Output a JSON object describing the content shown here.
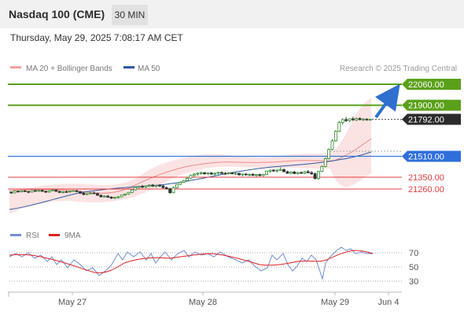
{
  "header": {
    "title": "Nasdaq 100 (CME)",
    "timeframe": "30 MIN",
    "datetime": "Thursday, May 29, 2025 7:08:17 AM CET"
  },
  "chart_data": {
    "type": "candlestick",
    "legend": [
      {
        "name": "MA 20 + Bollinger Bands",
        "color": "#f08a8a"
      },
      {
        "name": "MA 50",
        "color": "#2e5aa0"
      }
    ],
    "credit": "Research © 2025 Trading Central",
    "x_ticks": [
      "May 27",
      "May 28",
      "May 29",
      "Jun 4"
    ],
    "ylim": [
      21160,
      22080
    ],
    "current_price": "21792.00",
    "levels": [
      {
        "label": "22060.00",
        "value": 22060,
        "kind": "resistance",
        "color": "#5aa01a"
      },
      {
        "label": "21900.00",
        "value": 21900,
        "kind": "resistance",
        "color": "#5aa01a"
      },
      {
        "label": "21510.00",
        "value": 21510,
        "kind": "pivot",
        "color": "#2f6fdb"
      },
      {
        "label": "21350.00",
        "value": 21350,
        "kind": "support",
        "color": "#e04040"
      },
      {
        "label": "21260.00",
        "value": 21260,
        "kind": "support",
        "color": "#e04040"
      }
    ],
    "candles": [
      [
        21237,
        21240,
        21222,
        21230
      ],
      [
        21230,
        21248,
        21226,
        21244
      ],
      [
        21244,
        21247,
        21232,
        21238
      ],
      [
        21238,
        21250,
        21234,
        21246
      ],
      [
        21246,
        21252,
        21238,
        21241
      ],
      [
        21241,
        21246,
        21228,
        21236
      ],
      [
        21236,
        21250,
        21233,
        21248
      ],
      [
        21248,
        21256,
        21240,
        21244
      ],
      [
        21244,
        21254,
        21236,
        21250
      ],
      [
        21250,
        21253,
        21238,
        21242
      ],
      [
        21242,
        21248,
        21230,
        21236
      ],
      [
        21236,
        21250,
        21232,
        21246
      ],
      [
        21246,
        21258,
        21244,
        21252
      ],
      [
        21252,
        21255,
        21238,
        21242
      ],
      [
        21242,
        21246,
        21228,
        21234
      ],
      [
        21234,
        21244,
        21226,
        21240
      ],
      [
        21240,
        21248,
        21232,
        21238
      ],
      [
        21238,
        21246,
        21230,
        21244
      ],
      [
        21244,
        21252,
        21238,
        21248
      ],
      [
        21248,
        21252,
        21236,
        21240
      ],
      [
        21240,
        21244,
        21222,
        21228
      ],
      [
        21228,
        21234,
        21212,
        21218
      ],
      [
        21218,
        21228,
        21212,
        21224
      ],
      [
        21224,
        21236,
        21218,
        21230
      ],
      [
        21230,
        21240,
        21222,
        21226
      ],
      [
        21226,
        21232,
        21208,
        21212
      ],
      [
        21212,
        21218,
        21196,
        21200
      ],
      [
        21200,
        21212,
        21194,
        21206
      ],
      [
        21206,
        21214,
        21192,
        21198
      ],
      [
        21198,
        21204,
        21184,
        21190
      ],
      [
        21190,
        21200,
        21182,
        21196
      ],
      [
        21196,
        21206,
        21188,
        21200
      ],
      [
        21200,
        21218,
        21196,
        21214
      ],
      [
        21214,
        21226,
        21206,
        21222
      ],
      [
        21222,
        21238,
        21216,
        21234
      ],
      [
        21234,
        21258,
        21228,
        21254
      ],
      [
        21254,
        21278,
        21248,
        21272
      ],
      [
        21272,
        21286,
        21264,
        21280
      ],
      [
        21280,
        21292,
        21268,
        21276
      ],
      [
        21276,
        21288,
        21266,
        21284
      ],
      [
        21284,
        21296,
        21274,
        21290
      ],
      [
        21290,
        21298,
        21276,
        21282
      ],
      [
        21282,
        21292,
        21270,
        21288
      ],
      [
        21288,
        21296,
        21276,
        21284
      ],
      [
        21284,
        21290,
        21264,
        21270
      ],
      [
        21270,
        21280,
        21256,
        21262
      ],
      [
        21262,
        21270,
        21224,
        21232
      ],
      [
        21232,
        21278,
        21228,
        21270
      ],
      [
        21270,
        21300,
        21264,
        21296
      ],
      [
        21296,
        21318,
        21290,
        21312
      ],
      [
        21312,
        21330,
        21306,
        21324
      ],
      [
        21324,
        21348,
        21318,
        21342
      ],
      [
        21342,
        21370,
        21336,
        21364
      ],
      [
        21364,
        21382,
        21352,
        21374
      ],
      [
        21374,
        21388,
        21362,
        21380
      ],
      [
        21380,
        21392,
        21368,
        21384
      ],
      [
        21384,
        21390,
        21370,
        21376
      ],
      [
        21376,
        21388,
        21366,
        21382
      ],
      [
        21382,
        21390,
        21368,
        21374
      ],
      [
        21374,
        21386,
        21364,
        21380
      ],
      [
        21380,
        21392,
        21370,
        21386
      ],
      [
        21386,
        21394,
        21374,
        21380
      ],
      [
        21380,
        21390,
        21368,
        21378
      ],
      [
        21378,
        21390,
        21370,
        21384
      ],
      [
        21384,
        21388,
        21372,
        21376
      ],
      [
        21376,
        21386,
        21366,
        21380
      ],
      [
        21380,
        21384,
        21362,
        21368
      ],
      [
        21368,
        21378,
        21358,
        21374
      ],
      [
        21374,
        21382,
        21362,
        21368
      ],
      [
        21368,
        21378,
        21358,
        21372
      ],
      [
        21372,
        21380,
        21360,
        21364
      ],
      [
        21364,
        21374,
        21352,
        21370
      ],
      [
        21370,
        21378,
        21358,
        21362
      ],
      [
        21362,
        21376,
        21356,
        21372
      ],
      [
        21372,
        21400,
        21368,
        21396
      ],
      [
        21396,
        21408,
        21384,
        21404
      ],
      [
        21404,
        21412,
        21390,
        21398
      ],
      [
        21398,
        21410,
        21386,
        21404
      ],
      [
        21404,
        21426,
        21398,
        21408
      ],
      [
        21408,
        21416,
        21388,
        21392
      ],
      [
        21392,
        21400,
        21376,
        21380
      ],
      [
        21380,
        21394,
        21372,
        21390
      ],
      [
        21390,
        21398,
        21374,
        21378
      ],
      [
        21378,
        21392,
        21370,
        21386
      ],
      [
        21386,
        21394,
        21376,
        21380
      ],
      [
        21380,
        21398,
        21374,
        21392
      ],
      [
        21392,
        21404,
        21380,
        21384
      ],
      [
        21384,
        21398,
        21368,
        21376
      ],
      [
        21376,
        21386,
        21334,
        21340
      ],
      [
        21340,
        21400,
        21330,
        21394
      ],
      [
        21394,
        21440,
        21388,
        21432
      ],
      [
        21432,
        21500,
        21426,
        21492
      ],
      [
        21492,
        21570,
        21486,
        21562
      ],
      [
        21562,
        21640,
        21554,
        21628
      ],
      [
        21628,
        21710,
        21620,
        21700
      ],
      [
        21700,
        21780,
        21694,
        21768
      ],
      [
        21768,
        21800,
        21752,
        21790
      ],
      [
        21790,
        21810,
        21772,
        21782
      ],
      [
        21782,
        21800,
        21770,
        21796
      ],
      [
        21796,
        21812,
        21780,
        21788
      ],
      [
        21788,
        21806,
        21778,
        21798
      ],
      [
        21798,
        21808,
        21784,
        21790
      ],
      [
        21790,
        21802,
        21780,
        21794
      ],
      [
        21794,
        21800,
        21782,
        21788
      ],
      [
        21788,
        21796,
        21782,
        21792
      ]
    ],
    "rsi": {
      "legend": [
        {
          "name": "RSI",
          "color": "#6d8fd6"
        },
        {
          "name": "9MA",
          "color": "#e02020"
        }
      ],
      "ticks": [
        70,
        50,
        30
      ],
      "levels_dotted": [
        70,
        50,
        30
      ]
    }
  }
}
